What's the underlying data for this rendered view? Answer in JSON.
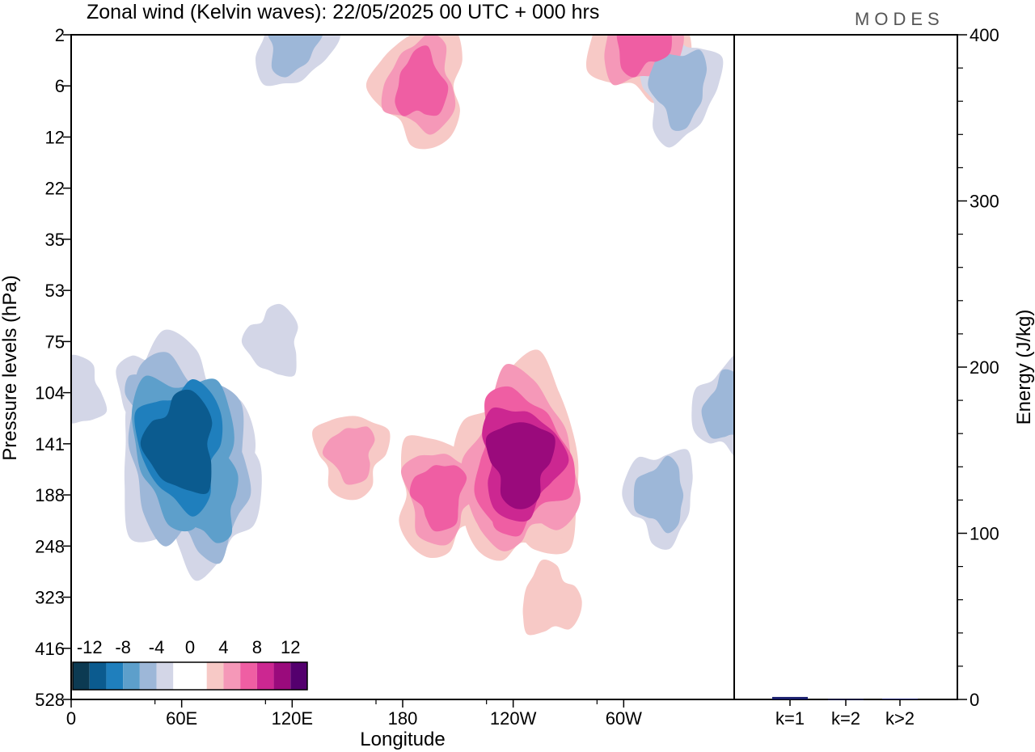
{
  "header": {
    "title": "Zonal wind (Kelvin waves):  22/05/2025  00 UTC  + 000 hrs",
    "logo": "MODES"
  },
  "colors": {
    "palette": [
      "#0c3a52",
      "#0b5b8f",
      "#1f7fbd",
      "#5d9fcb",
      "#9db7d8",
      "#d3d6e7",
      "#ffffff",
      "#ffffff",
      "#f7c9c6",
      "#f598b8",
      "#ef5ea3",
      "#cc2791",
      "#9a0a7c",
      "#54006e"
    ],
    "axes": "#000000",
    "bar": "#1a1f6e"
  },
  "chart_data": [
    {
      "type": "heatmap",
      "title": "Zonal wind (Kelvin waves):  22/05/2025  00 UTC  + 000 hrs",
      "xlabel": "Longitude",
      "ylabel": "Pressure levels (hPa)",
      "x_ticks": [
        "0",
        "60E",
        "120E",
        "180",
        "120W",
        "60W"
      ],
      "y_ticks": [
        "2",
        "6",
        "12",
        "22",
        "35",
        "53",
        "75",
        "104",
        "141",
        "188",
        "248",
        "323",
        "416",
        "528"
      ],
      "colorbar": {
        "tick_labels": [
          "-12",
          "-8",
          "-4",
          "0",
          "4",
          "8",
          "12"
        ],
        "levels": [
          -14,
          -12,
          -10,
          -8,
          -6,
          -4,
          -2,
          0,
          2,
          4,
          6,
          8,
          10,
          12,
          14
        ]
      },
      "features": [
        {
          "lon": 60,
          "level": 141,
          "value": -11
        },
        {
          "lon": 75,
          "level": 188,
          "value": -8
        },
        {
          "lon": 45,
          "level": 104,
          "value": -5
        },
        {
          "lon": 110,
          "level": 75,
          "value": -4
        },
        {
          "lon": 3,
          "level": 104,
          "value": -4
        },
        {
          "lon": 120,
          "level": 2,
          "value": -6
        },
        {
          "lon": 330,
          "level": 6,
          "value": -6
        },
        {
          "lon": 320,
          "level": 188,
          "value": -5
        },
        {
          "lon": 357,
          "level": 116,
          "value": -5
        },
        {
          "lon": 244,
          "level": 157,
          "value": 9
        },
        {
          "lon": 240,
          "level": 188,
          "value": 6
        },
        {
          "lon": 200,
          "level": 188,
          "value": 5
        },
        {
          "lon": 152,
          "level": 150,
          "value": 3
        },
        {
          "lon": 190,
          "level": 6,
          "value": 5
        },
        {
          "lon": 310,
          "level": 2,
          "value": 6
        },
        {
          "lon": 260,
          "level": 330,
          "value": 2
        }
      ]
    },
    {
      "type": "bar",
      "categories": [
        "k=1",
        "k=2",
        "k>2"
      ],
      "values": [
        1.5,
        0.2,
        0.5
      ],
      "ylabel": "Energy (J/kg)",
      "ylim": [
        0,
        400
      ],
      "y_ticks": [
        "0",
        "100",
        "200",
        "300",
        "400"
      ]
    }
  ]
}
